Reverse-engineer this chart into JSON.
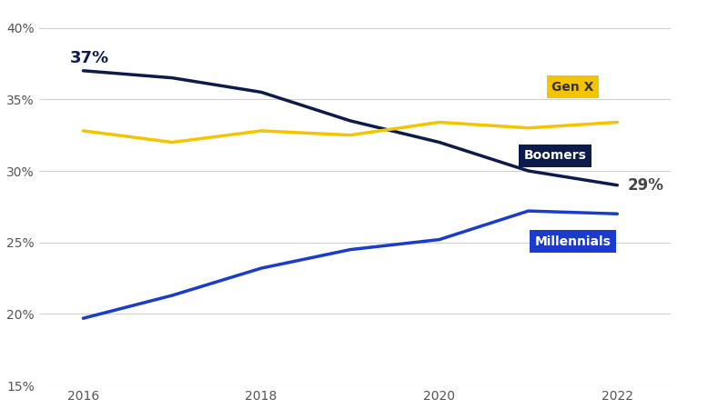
{
  "years": [
    2016,
    2017,
    2018,
    2019,
    2020,
    2021,
    2022
  ],
  "boomers": [
    0.37,
    0.365,
    0.355,
    0.335,
    0.32,
    0.3,
    0.29
  ],
  "genx": [
    0.328,
    0.32,
    0.328,
    0.325,
    0.334,
    0.33,
    0.334
  ],
  "millennials": [
    0.197,
    0.213,
    0.232,
    0.245,
    0.252,
    0.272,
    0.27
  ],
  "boomers_color": "#0d1b4b",
  "genx_color": "#f5c400",
  "millennials_color": "#1a3bcc",
  "boomers_label": "Boomers",
  "genx_label": "Gen X",
  "millennials_label": "Millennials",
  "boomers_label_box_color": "#0d1b4b",
  "genx_label_box_color": "#f5c400",
  "millennials_label_box_color": "#1a3bcc",
  "start_annotation": "37%",
  "end_annotation": "29%",
  "ylim": [
    0.15,
    0.415
  ],
  "yticks": [
    0.15,
    0.2,
    0.25,
    0.3,
    0.35,
    0.4
  ],
  "background_color": "#ffffff",
  "grid_color": "#d0d0d0",
  "line_width": 2.5
}
